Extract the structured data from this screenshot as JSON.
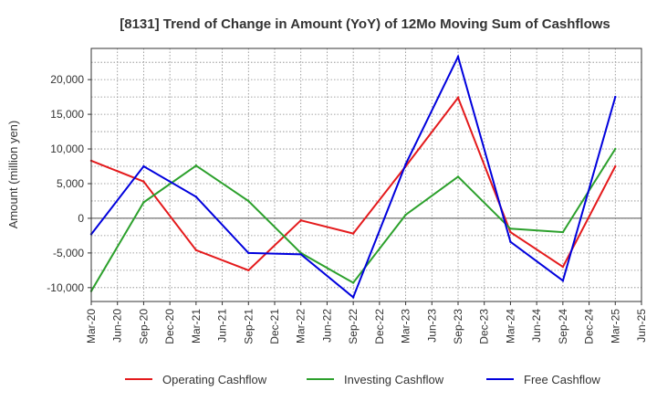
{
  "chart_data": {
    "type": "line",
    "title": "[8131]  Trend of Change in Amount (YoY) of 12Mo Moving Sum of Cashflows",
    "xlabel": "",
    "ylabel": "Amount (million yen)",
    "ylim": [
      -12000,
      24500
    ],
    "yticks": [
      -10000,
      -5000,
      0,
      5000,
      10000,
      15000,
      20000
    ],
    "ytick_labels": [
      "-10,000",
      "-5,000",
      "0",
      "5,000",
      "10,000",
      "15,000",
      "20,000"
    ],
    "categories": [
      "Mar-20",
      "Jun-20",
      "Sep-20",
      "Dec-20",
      "Mar-21",
      "Jun-21",
      "Sep-21",
      "Dec-21",
      "Mar-22",
      "Jun-22",
      "Sep-22",
      "Dec-22",
      "Mar-23",
      "Jun-23",
      "Sep-23",
      "Dec-23",
      "Mar-24",
      "Jun-24",
      "Sep-24",
      "Dec-24",
      "Mar-25",
      "Jun-25"
    ],
    "grid": true,
    "legend_position": "bottom",
    "series": [
      {
        "name": "Operating Cashflow",
        "color": "#e41a1c",
        "x": [
          "Mar-20",
          "Sep-20",
          "Mar-21",
          "Sep-21",
          "Mar-22",
          "Sep-22",
          "Mar-23",
          "Sep-23",
          "Mar-24",
          "Sep-24",
          "Mar-25"
        ],
        "values": [
          8300,
          5300,
          -4600,
          -7500,
          -300,
          -2200,
          7500,
          17400,
          -2000,
          -7000,
          7500
        ]
      },
      {
        "name": "Investing Cashflow",
        "color": "#2ca02c",
        "x": [
          "Mar-20",
          "Sep-20",
          "Mar-21",
          "Sep-21",
          "Mar-22",
          "Sep-22",
          "Mar-23",
          "Sep-23",
          "Mar-24",
          "Sep-24",
          "Mar-25"
        ],
        "values": [
          -10500,
          2300,
          7600,
          2500,
          -5000,
          -9300,
          500,
          6000,
          -1500,
          -2000,
          10000
        ]
      },
      {
        "name": "Free Cashflow",
        "color": "#0000dd",
        "x": [
          "Mar-20",
          "Sep-20",
          "Mar-21",
          "Sep-21",
          "Mar-22",
          "Sep-22",
          "Mar-23",
          "Sep-23",
          "Mar-24",
          "Sep-24",
          "Mar-25"
        ],
        "values": [
          -2300,
          7500,
          3100,
          -5000,
          -5200,
          -11400,
          7800,
          23300,
          -3400,
          -9000,
          17500
        ]
      }
    ]
  }
}
